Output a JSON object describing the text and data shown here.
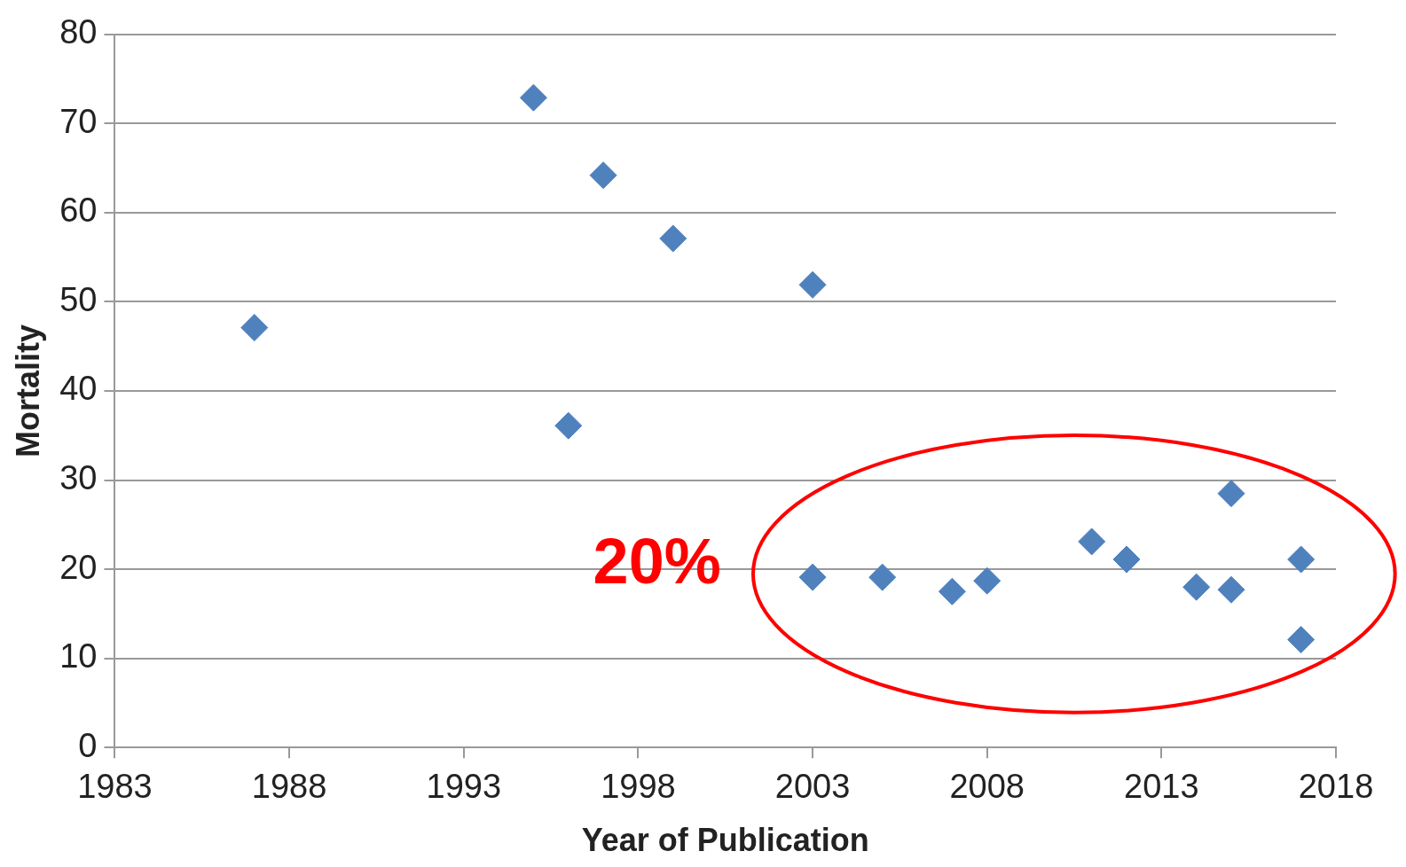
{
  "chart_data": {
    "type": "scatter",
    "xlabel": "Year of Publication",
    "ylabel": "Mortality",
    "x": [
      1987,
      1995,
      1996,
      1997,
      1999,
      2003,
      2003,
      2005,
      2007,
      2008,
      2011,
      2012,
      2014,
      2015,
      2015,
      2017,
      2017
    ],
    "values": [
      47.1,
      72.9,
      36.1,
      64.2,
      57.1,
      51.9,
      19.1,
      19.1,
      17.5,
      18.7,
      23.1,
      21.1,
      18.0,
      28.5,
      17.7,
      21.1,
      12.1
    ],
    "color": "#4f81bd",
    "marker": "diamond",
    "xlim": [
      1983,
      2018
    ],
    "xticks": [
      1983,
      1988,
      1993,
      1998,
      2003,
      2008,
      2013,
      2018
    ],
    "ylim": [
      0,
      80
    ],
    "yticks": [
      0,
      10,
      20,
      30,
      40,
      50,
      60,
      70,
      80
    ],
    "grid": "y",
    "legend": false,
    "annotations": [
      "20%"
    ]
  }
}
